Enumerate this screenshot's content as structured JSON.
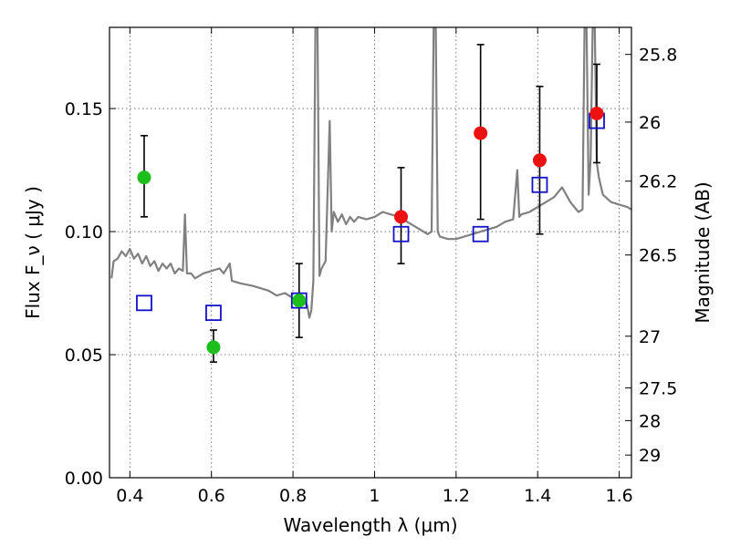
{
  "chart_data": {
    "type": "scatter",
    "xlabel": "Wavelength  λ (μm)",
    "ylabel": "Flux  F_ν  ( μJy )",
    "ylabel_right": "Magnitude (AB)",
    "xlim": [
      0.35,
      1.63
    ],
    "ylim": [
      0.0,
      0.183
    ],
    "grid": true,
    "x_ticks": [
      {
        "value": 0.4,
        "label": "0.4"
      },
      {
        "value": 0.6,
        "label": "0.6"
      },
      {
        "value": 0.8,
        "label": "0.8"
      },
      {
        "value": 1.0,
        "label": "1"
      },
      {
        "value": 1.2,
        "label": "1.2"
      },
      {
        "value": 1.4,
        "label": "1.4"
      },
      {
        "value": 1.6,
        "label": "1.6"
      }
    ],
    "y_ticks": [
      {
        "value": 0.0,
        "label": "0.00"
      },
      {
        "value": 0.05,
        "label": "0.05"
      },
      {
        "value": 0.1,
        "label": "0.10"
      },
      {
        "value": 0.15,
        "label": "0.15"
      }
    ],
    "right_ticks": [
      {
        "flux": 0.172,
        "label": "25.8"
      },
      {
        "flux": 0.1445,
        "label": "26"
      },
      {
        "flux": 0.1205,
        "label": "26.2"
      },
      {
        "flux": 0.0905,
        "label": "26.5"
      },
      {
        "flux": 0.0575,
        "label": "27"
      },
      {
        "flux": 0.0365,
        "label": "27.5"
      },
      {
        "flux": 0.0232,
        "label": "28"
      },
      {
        "flux": 0.0092,
        "label": "29"
      }
    ],
    "colors": {
      "spectrum": "#808080",
      "green": "#1cbf1c",
      "red": "#ee1111",
      "model": "#1111cc",
      "errorbar": "#000000"
    },
    "series": [
      {
        "kind": "spectrum",
        "points": [
          [
            0.355,
            0.081
          ],
          [
            0.36,
            0.088
          ],
          [
            0.37,
            0.089
          ],
          [
            0.38,
            0.092
          ],
          [
            0.39,
            0.09
          ],
          [
            0.4,
            0.093
          ],
          [
            0.41,
            0.089
          ],
          [
            0.42,
            0.091
          ],
          [
            0.43,
            0.087
          ],
          [
            0.44,
            0.09
          ],
          [
            0.45,
            0.086
          ],
          [
            0.46,
            0.088
          ],
          [
            0.47,
            0.084
          ],
          [
            0.48,
            0.087
          ],
          [
            0.49,
            0.085
          ],
          [
            0.5,
            0.087
          ],
          [
            0.51,
            0.083
          ],
          [
            0.52,
            0.085
          ],
          [
            0.53,
            0.084
          ],
          [
            0.535,
            0.107
          ],
          [
            0.54,
            0.083
          ],
          [
            0.55,
            0.083
          ],
          [
            0.56,
            0.081
          ],
          [
            0.58,
            0.083
          ],
          [
            0.6,
            0.084
          ],
          [
            0.62,
            0.085
          ],
          [
            0.63,
            0.083
          ],
          [
            0.645,
            0.087
          ],
          [
            0.65,
            0.08
          ],
          [
            0.67,
            0.079
          ],
          [
            0.7,
            0.078
          ],
          [
            0.72,
            0.077
          ],
          [
            0.74,
            0.076
          ],
          [
            0.76,
            0.074
          ],
          [
            0.78,
            0.075
          ],
          [
            0.8,
            0.073
          ],
          [
            0.82,
            0.072
          ],
          [
            0.835,
            0.07
          ],
          [
            0.84,
            0.065
          ],
          [
            0.845,
            0.068
          ],
          [
            0.85,
            0.08
          ],
          [
            0.855,
            0.185
          ],
          [
            0.86,
            0.185
          ],
          [
            0.865,
            0.082
          ],
          [
            0.87,
            0.085
          ],
          [
            0.88,
            0.088
          ],
          [
            0.89,
            0.145
          ],
          [
            0.895,
            0.1
          ],
          [
            0.9,
            0.108
          ],
          [
            0.91,
            0.104
          ],
          [
            0.92,
            0.107
          ],
          [
            0.93,
            0.103
          ],
          [
            0.94,
            0.106
          ],
          [
            0.95,
            0.104
          ],
          [
            0.96,
            0.106
          ],
          [
            0.98,
            0.105
          ],
          [
            1.0,
            0.106
          ],
          [
            1.02,
            0.108
          ],
          [
            1.04,
            0.107
          ],
          [
            1.06,
            0.106
          ],
          [
            1.08,
            0.104
          ],
          [
            1.1,
            0.102
          ],
          [
            1.12,
            0.1
          ],
          [
            1.13,
            0.099
          ],
          [
            1.14,
            0.1
          ],
          [
            1.145,
            0.185
          ],
          [
            1.15,
            0.185
          ],
          [
            1.155,
            0.1
          ],
          [
            1.16,
            0.098
          ],
          [
            1.18,
            0.097
          ],
          [
            1.2,
            0.097
          ],
          [
            1.22,
            0.098
          ],
          [
            1.24,
            0.099
          ],
          [
            1.26,
            0.1
          ],
          [
            1.28,
            0.101
          ],
          [
            1.3,
            0.102
          ],
          [
            1.32,
            0.104
          ],
          [
            1.34,
            0.105
          ],
          [
            1.35,
            0.125
          ],
          [
            1.355,
            0.106
          ],
          [
            1.36,
            0.107
          ],
          [
            1.38,
            0.108
          ],
          [
            1.4,
            0.11
          ],
          [
            1.42,
            0.112
          ],
          [
            1.44,
            0.114
          ],
          [
            1.46,
            0.118
          ],
          [
            1.48,
            0.112
          ],
          [
            1.5,
            0.108
          ],
          [
            1.51,
            0.109
          ],
          [
            1.515,
            0.183
          ],
          [
            1.52,
            0.183
          ],
          [
            1.525,
            0.115
          ],
          [
            1.53,
            0.13
          ],
          [
            1.535,
            0.183
          ],
          [
            1.54,
            0.183
          ],
          [
            1.545,
            0.128
          ],
          [
            1.55,
            0.122
          ],
          [
            1.56,
            0.115
          ],
          [
            1.58,
            0.112
          ],
          [
            1.6,
            0.111
          ],
          [
            1.62,
            0.11
          ],
          [
            1.63,
            0.109
          ]
        ]
      },
      {
        "kind": "points",
        "color": "green",
        "points": [
          {
            "x": 0.435,
            "y": 0.122,
            "lo": 0.106,
            "hi": 0.139
          },
          {
            "x": 0.605,
            "y": 0.053,
            "lo": 0.047,
            "hi": 0.06
          },
          {
            "x": 0.815,
            "y": 0.072,
            "lo": 0.057,
            "hi": 0.087
          }
        ]
      },
      {
        "kind": "points",
        "color": "red",
        "points": [
          {
            "x": 1.065,
            "y": 0.106,
            "lo": 0.087,
            "hi": 0.126
          },
          {
            "x": 1.26,
            "y": 0.14,
            "lo": 0.105,
            "hi": 0.176
          },
          {
            "x": 1.405,
            "y": 0.129,
            "lo": 0.099,
            "hi": 0.159
          },
          {
            "x": 1.545,
            "y": 0.148,
            "lo": 0.128,
            "hi": 0.168
          }
        ]
      },
      {
        "kind": "model",
        "color": "model",
        "points": [
          {
            "x": 0.435,
            "y": 0.071
          },
          {
            "x": 0.605,
            "y": 0.067
          },
          {
            "x": 0.815,
            "y": 0.072
          },
          {
            "x": 1.065,
            "y": 0.099
          },
          {
            "x": 1.26,
            "y": 0.099
          },
          {
            "x": 1.405,
            "y": 0.119
          },
          {
            "x": 1.545,
            "y": 0.145
          }
        ]
      }
    ]
  }
}
